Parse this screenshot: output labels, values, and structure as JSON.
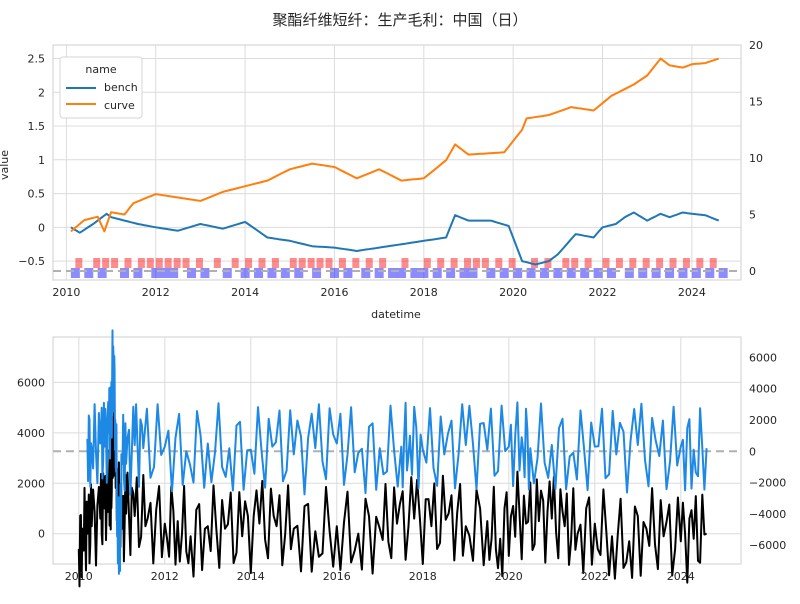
{
  "title": "聚酯纤维短纤：生产毛利：中国（日）",
  "colors": {
    "bench": "#1f77b4",
    "curve": "#ff7f0e",
    "black": "#000000",
    "blue2": "#1e88e5",
    "red_band": "#ff0000",
    "blue_band": "#0000ff",
    "ref_line": "#b0b0b0"
  },
  "chart_data": [
    {
      "type": "line",
      "xlabel": "datetime",
      "ylabel": "value",
      "xlim": [
        2009.7,
        2025.1
      ],
      "ylim": [
        -0.78,
        2.7
      ],
      "y2lim": [
        -0.8,
        20
      ],
      "xticks": [
        2010,
        2012,
        2014,
        2016,
        2018,
        2020,
        2022,
        2024
      ],
      "yticks": [
        -0.5,
        0.0,
        0.5,
        1.0,
        1.5,
        2.0,
        2.5
      ],
      "y2ticks": [
        0,
        5,
        10,
        15,
        20
      ],
      "grid": true,
      "legend": {
        "title": "name",
        "placement": "top-left",
        "entries": [
          "bench",
          "curve"
        ]
      },
      "series": [
        {
          "name": "bench",
          "axis": "left",
          "x": [
            2010.1,
            2010.3,
            2010.6,
            2010.9,
            2011.0,
            2011.3,
            2011.6,
            2012.0,
            2012.5,
            2013.0,
            2013.5,
            2014.0,
            2014.5,
            2015.0,
            2015.5,
            2016.0,
            2016.5,
            2017.0,
            2017.5,
            2018.0,
            2018.5,
            2018.7,
            2019.0,
            2019.5,
            2019.9,
            2020.2,
            2020.5,
            2020.8,
            2021.0,
            2021.4,
            2021.8,
            2022.0,
            2022.3,
            2022.5,
            2022.7,
            2023.0,
            2023.3,
            2023.5,
            2023.8,
            2024.0,
            2024.3,
            2024.6
          ],
          "y": [
            0.0,
            -0.08,
            0.05,
            0.2,
            0.15,
            0.1,
            0.05,
            0.0,
            -0.05,
            0.05,
            -0.02,
            0.08,
            -0.15,
            -0.2,
            -0.28,
            -0.3,
            -0.35,
            -0.3,
            -0.25,
            -0.2,
            -0.15,
            0.18,
            0.1,
            0.1,
            0.02,
            -0.5,
            -0.55,
            -0.5,
            -0.4,
            -0.1,
            -0.15,
            0.0,
            0.05,
            0.15,
            0.22,
            0.1,
            0.2,
            0.15,
            0.22,
            0.2,
            0.18,
            0.1
          ]
        },
        {
          "name": "curve",
          "axis": "right",
          "x": [
            2010.1,
            2010.4,
            2010.7,
            2010.85,
            2011.0,
            2011.3,
            2011.5,
            2012.0,
            2012.5,
            2013.0,
            2013.5,
            2014.0,
            2014.5,
            2015.0,
            2015.5,
            2016.0,
            2016.5,
            2017.0,
            2017.5,
            2018.0,
            2018.5,
            2018.7,
            2019.0,
            2019.4,
            2019.8,
            2020.2,
            2020.3,
            2020.8,
            2021.3,
            2021.8,
            2022.2,
            2022.7,
            2023.0,
            2023.3,
            2023.5,
            2023.8,
            2024.0,
            2024.3,
            2024.6
          ],
          "y": [
            3.5,
            4.5,
            4.8,
            3.5,
            5.2,
            5.0,
            6.0,
            6.8,
            6.5,
            6.2,
            7.0,
            7.5,
            8.0,
            9.0,
            9.5,
            9.2,
            8.2,
            9.0,
            8.0,
            8.2,
            9.8,
            11.2,
            10.3,
            10.4,
            10.5,
            12.5,
            13.5,
            13.8,
            14.5,
            14.2,
            15.5,
            16.5,
            17.3,
            18.8,
            18.2,
            18.0,
            18.3,
            18.4,
            18.8
          ]
        }
      ],
      "reference_line": {
        "axis": "right",
        "value": 0
      },
      "bands": {
        "red_years": [
          2010.2,
          2010.6,
          2010.8,
          2011.0,
          2011.3,
          2011.6,
          2011.8,
          2012.0,
          2012.2,
          2012.4,
          2012.6,
          2012.9,
          2013.3,
          2013.7,
          2014.0,
          2014.3,
          2014.6,
          2015.0,
          2015.2,
          2015.4,
          2015.6,
          2015.8,
          2016.1,
          2016.4,
          2016.7,
          2017.0,
          2017.5,
          2018.0,
          2018.3,
          2018.6,
          2018.9,
          2019.1,
          2019.3,
          2019.6,
          2019.9,
          2020.4,
          2020.7,
          2021.1,
          2021.3,
          2021.6,
          2022.0,
          2022.3,
          2022.6,
          2022.9,
          2023.2,
          2023.5,
          2023.8,
          2024.1,
          2024.4
        ],
        "blue_years": [
          2010.1,
          2010.4,
          2010.7,
          2011.2,
          2011.5,
          2011.9,
          2012.1,
          2012.3,
          2012.7,
          2013.0,
          2013.5,
          2013.9,
          2014.2,
          2014.5,
          2014.8,
          2015.1,
          2015.5,
          2015.9,
          2016.2,
          2016.6,
          2016.9,
          2017.2,
          2017.4,
          2017.7,
          2017.9,
          2018.2,
          2018.5,
          2018.8,
          2019.0,
          2019.4,
          2019.7,
          2020.0,
          2020.3,
          2020.6,
          2020.9,
          2021.2,
          2021.5,
          2021.8,
          2022.1,
          2022.5,
          2022.8,
          2023.1,
          2023.4,
          2023.7,
          2024.0,
          2024.3,
          2024.6
        ]
      }
    },
    {
      "type": "line",
      "xlim": [
        2009.4,
        2025.4
      ],
      "ylim": [
        -1200,
        7800
      ],
      "y2lim": [
        -7200,
        7300
      ],
      "xticks": [
        2010,
        2012,
        2014,
        2016,
        2018,
        2020,
        2022,
        2024
      ],
      "yticks": [
        0,
        2000,
        4000,
        6000
      ],
      "y2ticks": [
        -6000,
        -4000,
        -2000,
        0,
        2000,
        4000,
        6000
      ],
      "grid": true,
      "series": [
        {
          "axis": "left",
          "color": "black",
          "x": [
            2010.0,
            2010.1,
            2010.2,
            2010.3,
            2010.5,
            2010.6,
            2010.7,
            2010.75,
            2010.8,
            2010.85,
            2010.9,
            2011.0,
            2011.1,
            2011.3,
            2011.6,
            2012.0,
            2012.3,
            2012.6,
            2013.0,
            2013.4,
            2013.8,
            2014.2,
            2014.6,
            2015.0,
            2015.5,
            2016.0,
            2016.5,
            2017.0,
            2017.4,
            2017.8,
            2018.2,
            2018.6,
            2019.0,
            2019.5,
            2019.8,
            2020.1,
            2020.4,
            2020.7,
            2021.0,
            2021.3,
            2021.6,
            2022.0,
            2022.4,
            2022.8,
            2023.2,
            2023.6,
            2024.0,
            2024.3,
            2024.6
          ],
          "y": [
            -600,
            200,
            0,
            300,
            600,
            1000,
            2000,
            1800,
            4100,
            3500,
            1600,
            200,
            800,
            700,
            600,
            400,
            500,
            -100,
            300,
            200,
            -100,
            400,
            300,
            200,
            100,
            300,
            0,
            200,
            400,
            600,
            300,
            800,
            300,
            500,
            -200,
            1100,
            400,
            500,
            600,
            300,
            0,
            400,
            -100,
            -300,
            200,
            -100,
            -300,
            -200,
            0
          ]
        },
        {
          "axis": "right",
          "color": "blue",
          "x": [
            2010.2,
            2010.3,
            2010.5,
            2010.6,
            2010.7,
            2010.75,
            2010.8,
            2010.85,
            2010.9,
            2010.95,
            2011.0,
            2011.1,
            2011.3,
            2011.5,
            2012.0,
            2012.5,
            2013.0,
            2013.5,
            2014.0,
            2014.5,
            2015.0,
            2015.5,
            2016.0,
            2016.5,
            2017.0,
            2017.5,
            2017.7,
            2018.0,
            2018.5,
            2019.0,
            2019.5,
            2020.0,
            2020.3,
            2020.5,
            2021.0,
            2021.5,
            2022.0,
            2022.5,
            2023.0,
            2023.5,
            2024.0,
            2024.3,
            2024.6
          ],
          "y": [
            800,
            200,
            500,
            300,
            1200,
            1800,
            6700,
            2000,
            -4000,
            -6500,
            -200,
            -800,
            400,
            200,
            300,
            0,
            500,
            200,
            100,
            300,
            -200,
            200,
            500,
            -100,
            200,
            300,
            1000,
            100,
            -200,
            400,
            100,
            300,
            900,
            200,
            400,
            -100,
            300,
            -200,
            400,
            -300,
            300,
            100,
            200
          ]
        }
      ],
      "reference_line": {
        "axis": "right",
        "value": 0
      }
    }
  ]
}
